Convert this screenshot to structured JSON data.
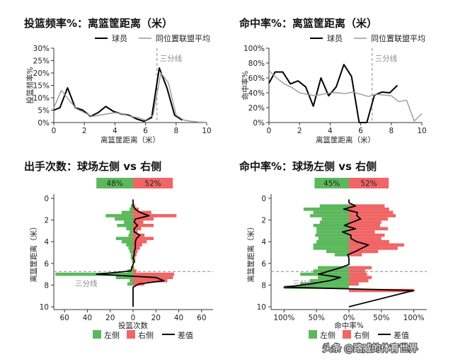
{
  "watermark": "头条 @路威的体育世界",
  "colors": {
    "player": "#000000",
    "league": "#999999",
    "left": "#5cb85c",
    "right": "#f06565",
    "diff": "#000000",
    "threeline": "#888888"
  },
  "chart_data": [
    {
      "id": "c1",
      "type": "line",
      "title": "投篮频率%：离篮筐距离（米）",
      "xlabel": "离篮筐距离（米）",
      "ylabel": "投篮频率%",
      "xlim": [
        0,
        10
      ],
      "ylim": [
        0,
        30
      ],
      "xticks": [
        "0",
        "2",
        "4",
        "6",
        "8",
        "10"
      ],
      "yticks": [
        "0%",
        "5%",
        "10%",
        "15%",
        "20%",
        "25%",
        "30%"
      ],
      "legend": [
        "球员",
        "同位置联盟平均"
      ],
      "annotation": "三分线",
      "three_point_line": 6.75,
      "series": [
        {
          "name": "球员",
          "x": [
            0,
            0.4,
            0.9,
            1.4,
            1.9,
            2.4,
            2.9,
            3.4,
            3.9,
            4.4,
            4.9,
            5.4,
            5.9,
            6.4,
            6.9,
            7.4,
            7.9,
            8.4
          ],
          "y": [
            5,
            6,
            14,
            6,
            5,
            2.5,
            4,
            6.5,
            4.5,
            3.5,
            3,
            1.5,
            0.5,
            2,
            22,
            14,
            3,
            1
          ]
        },
        {
          "name": "同位置联盟平均",
          "x": [
            0,
            0.5,
            1,
            1.5,
            2,
            2.5,
            3,
            3.5,
            4,
            4.5,
            5,
            5.5,
            6,
            6.5,
            7,
            7.5,
            8,
            8.5,
            9,
            9.5,
            10
          ],
          "y": [
            6,
            13,
            9,
            5.5,
            4,
            2.5,
            3,
            3.5,
            4,
            3.5,
            2.5,
            2,
            1,
            3,
            20,
            16,
            3,
            1,
            0.5,
            0.2,
            0.1
          ]
        }
      ]
    },
    {
      "id": "c2",
      "type": "line",
      "title": "命中率%：离篮筐距离（米）",
      "xlabel": "离篮筐距离（米）",
      "ylabel": "命中率%",
      "xlim": [
        0,
        10
      ],
      "ylim": [
        0,
        100
      ],
      "xticks": [
        "0",
        "2",
        "4",
        "6",
        "8",
        "10"
      ],
      "yticks": [
        "0%",
        "20%",
        "40%",
        "60%",
        "80%",
        "100%"
      ],
      "legend": [
        "球员",
        "同位置联盟平均"
      ],
      "annotation": "三分线",
      "three_point_line": 6.75,
      "series": [
        {
          "name": "球员",
          "x": [
            0,
            0.4,
            0.9,
            1.4,
            1.9,
            2.4,
            2.9,
            3.4,
            3.9,
            4.4,
            4.9,
            5.4,
            5.9,
            6.4,
            6.9,
            7.4,
            7.9,
            8.4
          ],
          "y": [
            53,
            68,
            68,
            52,
            56,
            48,
            22,
            60,
            36,
            48,
            78,
            62,
            0,
            0,
            37,
            41,
            40,
            50
          ]
        },
        {
          "name": "同位置联盟平均",
          "x": [
            0,
            0.5,
            1,
            1.5,
            2,
            2.5,
            3,
            3.5,
            4,
            4.5,
            5,
            5.5,
            6,
            6.5,
            7,
            7.5,
            8,
            8.5,
            9,
            9.5,
            10
          ],
          "y": [
            70,
            60,
            52,
            47,
            40,
            38,
            36,
            38,
            40,
            40,
            39,
            41,
            38,
            35,
            38,
            37,
            36,
            28,
            30,
            2,
            12
          ]
        }
      ]
    },
    {
      "id": "c3",
      "type": "bar",
      "title": "出手次数：球场左侧 vs 右侧",
      "xlabel": "投篮次数",
      "ylabel": "离篮筐距离（米）",
      "xlim": [
        -70,
        70
      ],
      "ylim": [
        0,
        10
      ],
      "xticks": [
        "60",
        "40",
        "20",
        "0",
        "20",
        "40",
        "60"
      ],
      "yticks": [
        "0",
        "2",
        "4",
        "6",
        "8",
        "10"
      ],
      "legend": [
        "左侧",
        "右侧",
        "差值"
      ],
      "annotation": "三分线",
      "three_point_line": 6.75,
      "share": {
        "left": "48%",
        "right": "52%",
        "left_value": 48,
        "right_value": 52
      },
      "distance": [
        0.1,
        0.4,
        0.7,
        1.0,
        1.3,
        1.6,
        1.9,
        2.2,
        2.5,
        2.8,
        3.1,
        3.4,
        3.7,
        4.0,
        4.3,
        4.6,
        4.9,
        5.2,
        5.5,
        5.8,
        6.1,
        6.4,
        6.7,
        7.0,
        7.3,
        7.6,
        7.9,
        8.2
      ],
      "left": [
        0,
        0,
        2,
        3,
        10,
        24,
        16,
        8,
        14,
        6,
        3,
        4,
        15,
        10,
        6,
        4,
        3,
        2,
        2,
        1,
        0,
        2,
        5,
        68,
        15,
        3,
        5,
        0
      ],
      "right": [
        0,
        0,
        2,
        5,
        16,
        38,
        18,
        9,
        18,
        7,
        4,
        10,
        18,
        12,
        8,
        6,
        4,
        3,
        2,
        2,
        0,
        1,
        3,
        36,
        35,
        30,
        10,
        0
      ],
      "diff": [
        0,
        0,
        0,
        2,
        6,
        14,
        2,
        1,
        4,
        1,
        1,
        6,
        3,
        2,
        2,
        2,
        1,
        1,
        0,
        1,
        0,
        -1,
        -2,
        -32,
        20,
        27,
        5,
        0
      ]
    },
    {
      "id": "c4",
      "type": "bar",
      "title": "命中率%：球场左侧 vs 右侧",
      "xlabel": "命中率%",
      "ylabel": "离篮筐距离（米）",
      "xlim": [
        -120,
        120
      ],
      "ylim": [
        0,
        10
      ],
      "xticks": [
        "100%",
        "50%",
        "0%",
        "50%",
        "100%"
      ],
      "yticks": [
        "0",
        "2",
        "4",
        "6",
        "8",
        "10"
      ],
      "legend": [
        "左侧",
        "右侧",
        "差值"
      ],
      "annotation": "三分线",
      "three_point_line": 6.75,
      "share": {
        "left": "45%",
        "right": "52%",
        "left_value": 45,
        "right_value": 52
      },
      "distance": [
        0.1,
        0.4,
        0.7,
        1.0,
        1.3,
        1.6,
        1.9,
        2.2,
        2.5,
        2.8,
        3.1,
        3.4,
        3.7,
        4.0,
        4.3,
        4.6,
        4.9,
        5.2,
        5.5,
        5.8,
        6.1,
        6.4,
        6.7,
        7.0,
        7.3,
        7.6,
        7.9,
        8.2,
        8.5
      ],
      "left": [
        0,
        0,
        45,
        70,
        55,
        60,
        42,
        45,
        55,
        50,
        50,
        52,
        47,
        50,
        55,
        55,
        35,
        22,
        0,
        0,
        0,
        48,
        55,
        75,
        48,
        60,
        75,
        100,
        0
      ],
      "right": [
        0,
        0,
        55,
        62,
        68,
        72,
        60,
        50,
        48,
        60,
        40,
        55,
        50,
        62,
        85,
        75,
        45,
        20,
        0,
        0,
        0,
        35,
        25,
        28,
        35,
        30,
        15,
        0,
        100
      ],
      "diff": [
        0,
        0,
        10,
        -8,
        13,
        12,
        18,
        5,
        -7,
        10,
        -10,
        3,
        3,
        12,
        30,
        20,
        10,
        -2,
        0,
        0,
        0,
        -13,
        -30,
        -47,
        -13,
        -30,
        -60,
        -100,
        100
      ]
    }
  ]
}
